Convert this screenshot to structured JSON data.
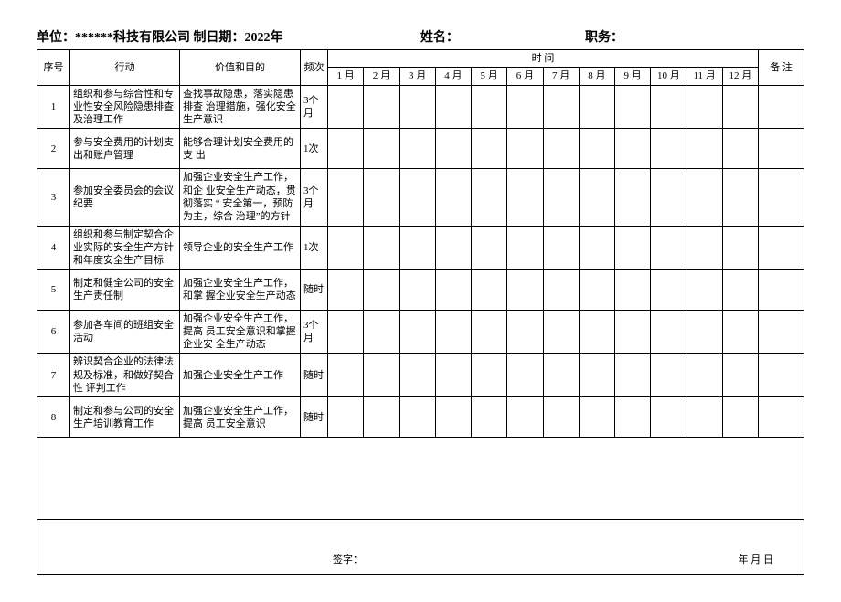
{
  "header": {
    "unit_label": "单位：",
    "unit_value": "******科技有限公司  制日期：2022年",
    "name_label": "姓名：",
    "position_label": "职务："
  },
  "columns": {
    "seq": "序号",
    "action": "行动",
    "value": "价值和目的",
    "freq": "频次",
    "time_header": "时                                                        间",
    "remark": "备  注",
    "months": [
      "1 月",
      "2 月",
      "3 月",
      "4 月",
      "5 月",
      "6 月",
      "7 月",
      "8 月",
      "9 月",
      "10 月",
      "11 月",
      "12 月"
    ]
  },
  "rows": [
    {
      "seq": "1",
      "action": "组织和参与综合性和专  业性安全风险隐患排查  及治理工作",
      "value": "查找事故隐患，落实隐患排查  治理措施，强化安全生产意识",
      "freq": "3个 月"
    },
    {
      "seq": "2",
      "action": "参与安全费用的计划支  出和账户管理",
      "value": "能够合理计划安全费用的支  出",
      "freq": "1次"
    },
    {
      "seq": "3",
      "action": "参加安全委员会的会议  纪要",
      "value": "加强企业安全生产工作，和企  业安全生产动态，贯彻落实 “ 安全第一，预防为主，综合  治理”的方针",
      "freq": "3个 月"
    },
    {
      "seq": "4",
      "action": "组织和参与制定契合企  业实际的安全生产方针  和年度安全生产目标",
      "value": "领导企业的安全生产工作",
      "freq": "1次"
    },
    {
      "seq": "5",
      "action": "制定和健全公司的安全  生产责任制",
      "value": "加强企业安全生产工作，和掌  握企业安全生产动态",
      "freq": "随时"
    },
    {
      "seq": "6",
      "action": "参加各车间的班组安全  活动",
      "value": "加强企业安全生产工作，提高  员工安全意识和掌握企业安  全生产动态",
      "freq": "3个 月"
    },
    {
      "seq": "7",
      "action": "辨识契合企业的法律法  规及标准，和做好契合性  评判工作",
      "value": "加强企业安全生产工作",
      "freq": "随时"
    },
    {
      "seq": "8",
      "action": "制定和参与公司的安全  生产培训教育工作",
      "value": "加强企业安全生产工作，提高  员工安全意识",
      "freq": "随时"
    }
  ],
  "footer": {
    "sign": "签字：",
    "date": "年  月  日"
  }
}
